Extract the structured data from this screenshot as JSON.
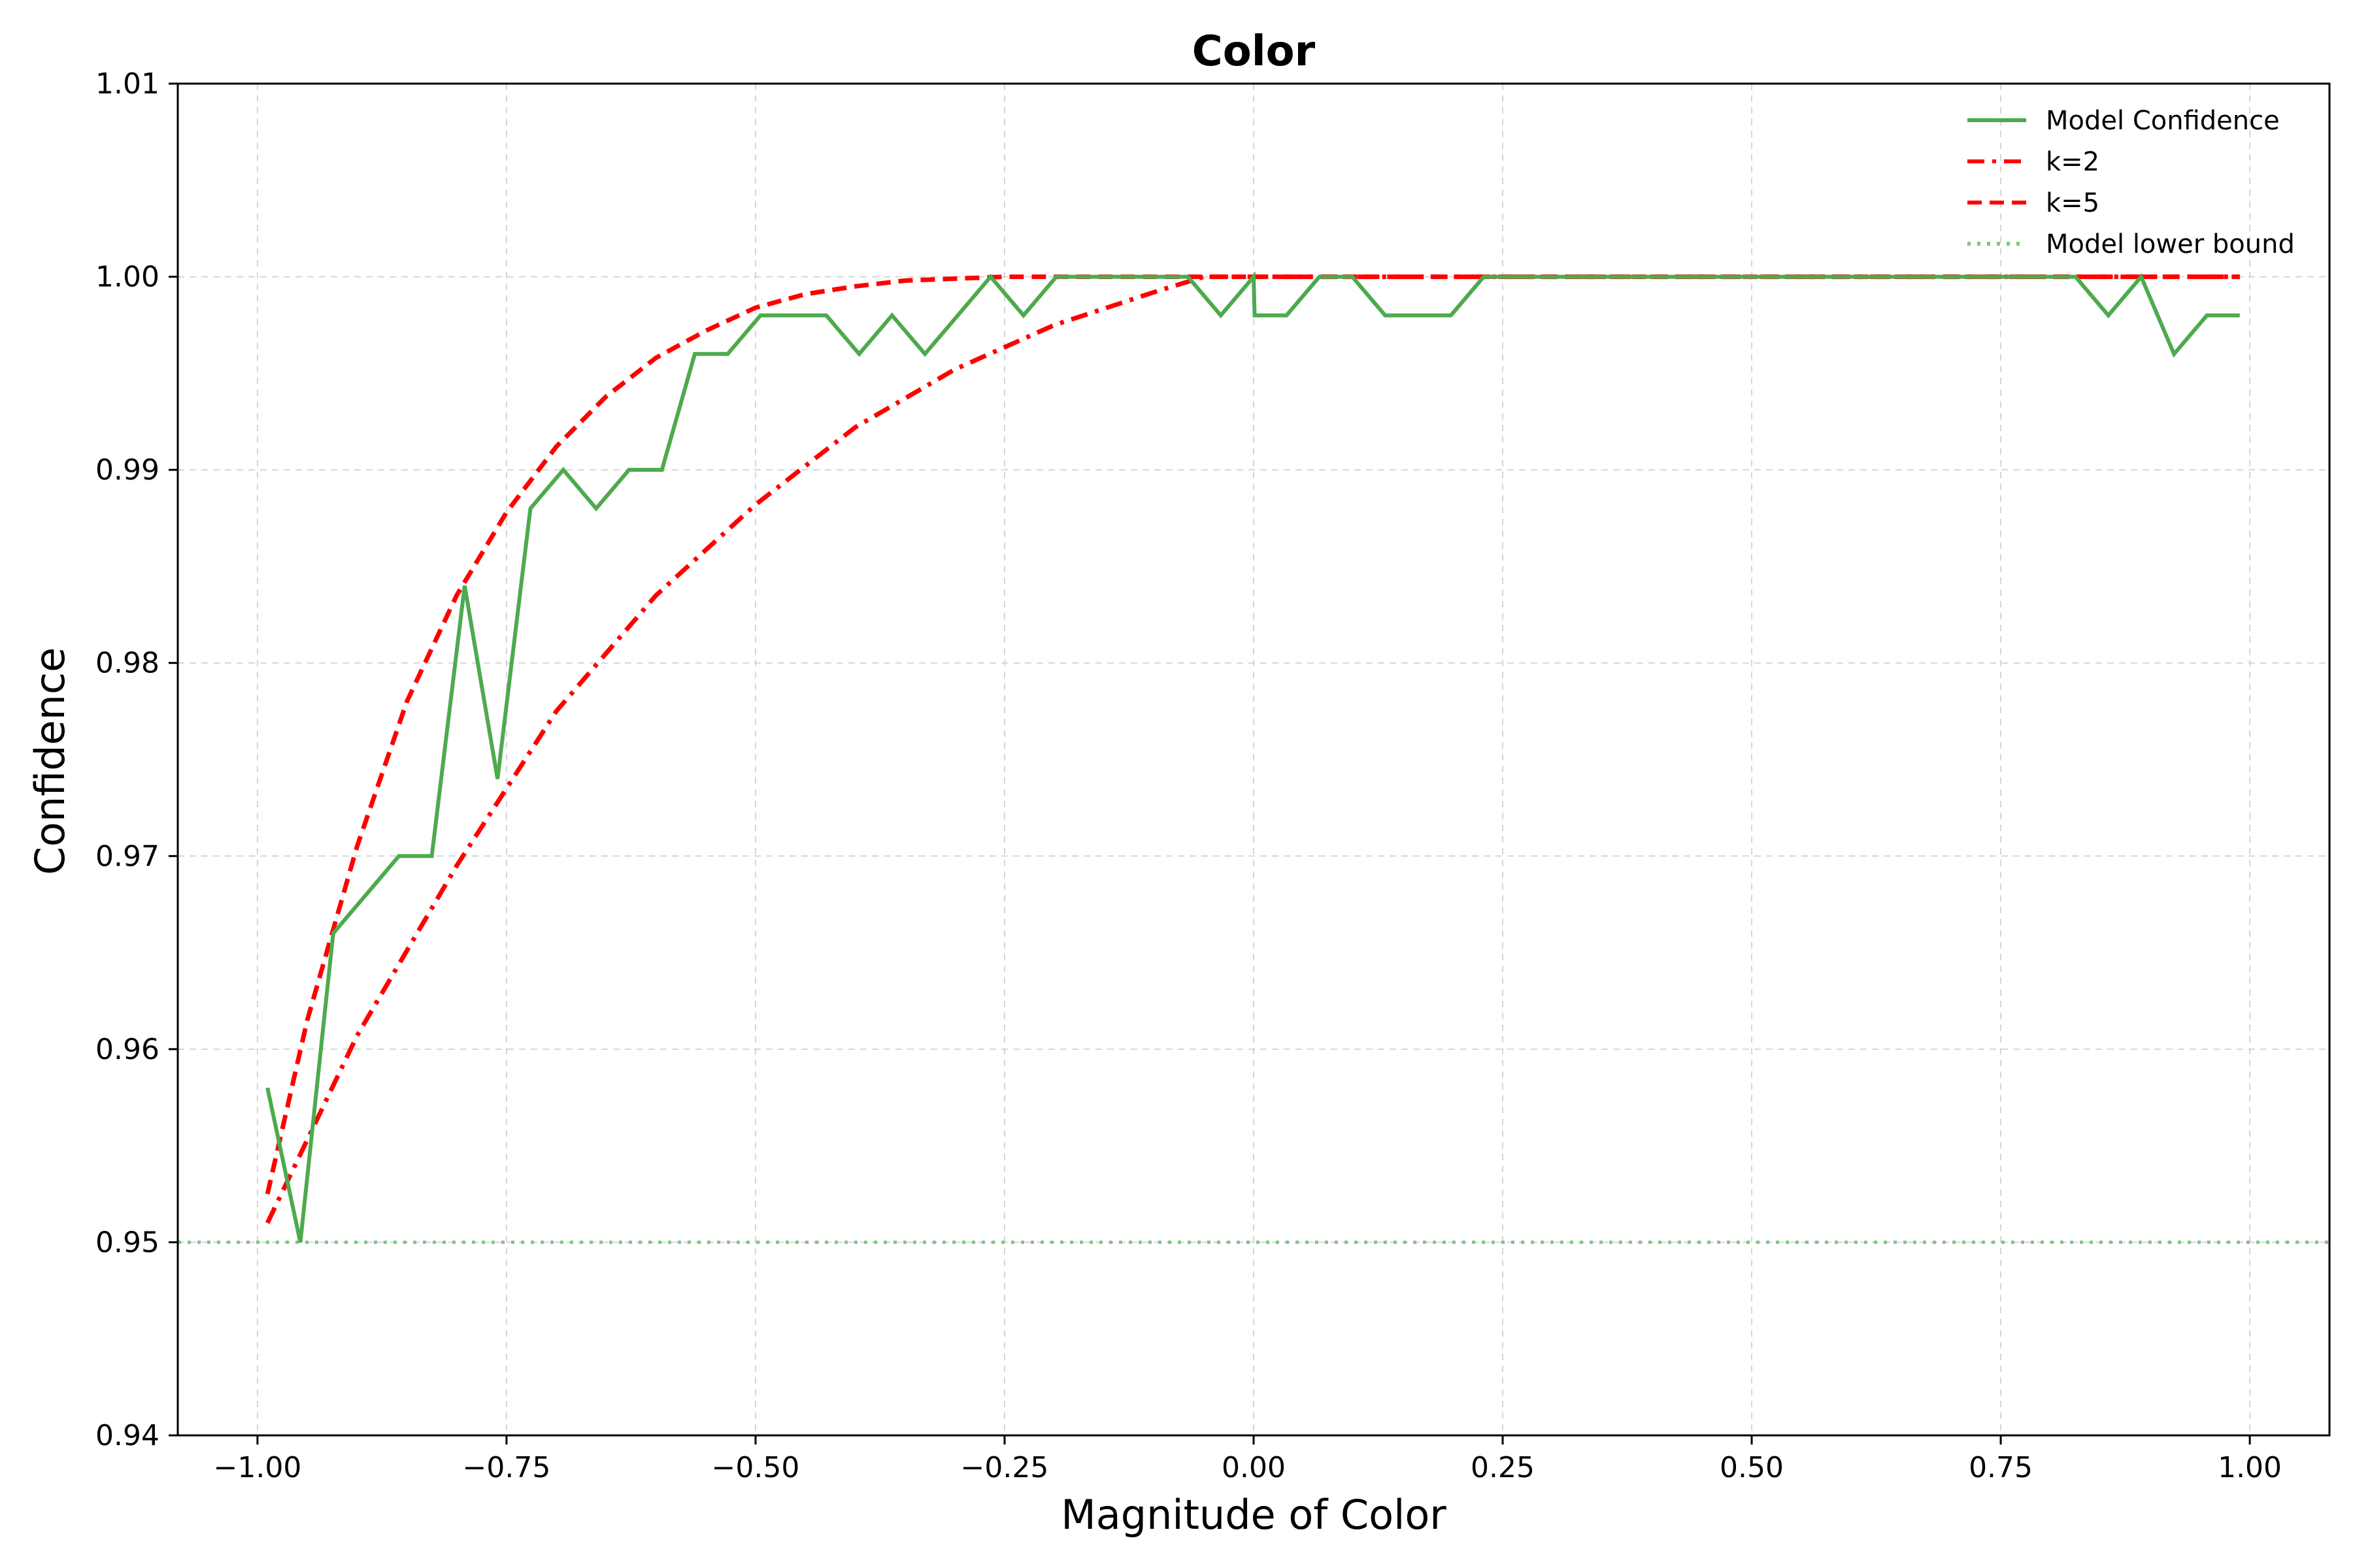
{
  "chart_data": {
    "type": "line",
    "title": "Color",
    "xlabel": "Magnitude of Color",
    "ylabel": "Confidence",
    "xlim": [
      -1.08,
      1.08
    ],
    "ylim": [
      0.94,
      1.01
    ],
    "x_ticks": [
      -1.0,
      -0.75,
      -0.5,
      -0.25,
      0.0,
      0.25,
      0.5,
      0.75,
      1.0
    ],
    "x_tick_labels": [
      "−1.00",
      "−0.75",
      "−0.50",
      "−0.25",
      "0.00",
      "0.25",
      "0.50",
      "0.75",
      "1.00"
    ],
    "y_ticks": [
      0.94,
      0.95,
      0.96,
      0.97,
      0.98,
      0.99,
      1.0,
      1.01
    ],
    "y_tick_labels": [
      "0.94",
      "0.95",
      "0.96",
      "0.97",
      "0.98",
      "0.99",
      "1.00",
      "1.01"
    ],
    "grid": true,
    "legend_position": "top-right",
    "lower_bound_label_color": "#2ca02c",
    "series": [
      {
        "name": "Model Confidence",
        "color": "#4daa4d",
        "style": "solid",
        "x": [
          -0.99,
          -0.957,
          -0.924,
          -0.891,
          -0.858,
          -0.825,
          -0.792,
          -0.759,
          -0.726,
          -0.693,
          -0.66,
          -0.627,
          -0.594,
          -0.561,
          -0.528,
          -0.495,
          -0.462,
          -0.429,
          -0.396,
          -0.363,
          -0.33,
          -0.297,
          -0.264,
          -0.231,
          -0.198,
          -0.165,
          -0.132,
          -0.099,
          -0.066,
          -0.033,
          0.0,
          0.001,
          0.033,
          0.066,
          0.099,
          0.132,
          0.165,
          0.198,
          0.231,
          0.264,
          0.297,
          0.33,
          0.363,
          0.396,
          0.429,
          0.462,
          0.495,
          0.528,
          0.561,
          0.594,
          0.627,
          0.66,
          0.693,
          0.726,
          0.759,
          0.792,
          0.825,
          0.858,
          0.891,
          0.924,
          0.957,
          0.99
        ],
        "y": [
          0.958,
          0.95,
          0.966,
          0.968,
          0.97,
          0.97,
          0.984,
          0.974,
          0.988,
          0.99,
          0.988,
          0.99,
          0.99,
          0.996,
          0.996,
          0.998,
          0.998,
          0.998,
          0.996,
          0.998,
          0.996,
          0.998,
          1.0,
          0.998,
          1.0,
          1.0,
          1.0,
          1.0,
          1.0,
          0.998,
          1.0,
          0.998,
          0.998,
          1.0,
          1.0,
          0.998,
          0.998,
          0.998,
          1.0,
          1.0,
          1.0,
          1.0,
          1.0,
          1.0,
          1.0,
          1.0,
          1.0,
          1.0,
          1.0,
          1.0,
          1.0,
          1.0,
          1.0,
          1.0,
          1.0,
          1.0,
          1.0,
          0.998,
          1.0,
          0.996,
          0.998,
          0.998
        ]
      },
      {
        "name": "k=2",
        "color": "#ff0000",
        "style": "dashdot",
        "x": [
          -0.99,
          -0.9,
          -0.8,
          -0.7,
          -0.6,
          -0.5,
          -0.4,
          -0.3,
          -0.2,
          -0.1,
          -0.05,
          0.0,
          0.25,
          0.5,
          0.75,
          0.99
        ],
        "y": [
          0.951,
          0.9607,
          0.9695,
          0.9775,
          0.9835,
          0.9882,
          0.9922,
          0.9952,
          0.9975,
          0.9992,
          1.0,
          1.0,
          1.0,
          1.0,
          1.0,
          1.0
        ]
      },
      {
        "name": "k=5",
        "color": "#ff0000",
        "style": "dashed",
        "x": [
          -0.99,
          -0.95,
          -0.9,
          -0.85,
          -0.8,
          -0.75,
          -0.7,
          -0.65,
          -0.6,
          -0.55,
          -0.5,
          -0.45,
          -0.4,
          -0.35,
          -0.3,
          -0.25,
          0.0,
          0.25,
          0.5,
          0.75,
          0.99
        ],
        "y": [
          0.9525,
          0.9615,
          0.9705,
          0.978,
          0.9835,
          0.9878,
          0.9912,
          0.9938,
          0.9958,
          0.9972,
          0.9984,
          0.9991,
          0.9995,
          0.9998,
          0.9999,
          1.0,
          1.0,
          1.0,
          1.0,
          1.0,
          1.0
        ]
      }
    ],
    "hlines": [
      {
        "name": "Model lower bound",
        "y": 0.95,
        "y_label": "0.95",
        "color": "#7dc87d",
        "style": "dotted"
      }
    ]
  }
}
